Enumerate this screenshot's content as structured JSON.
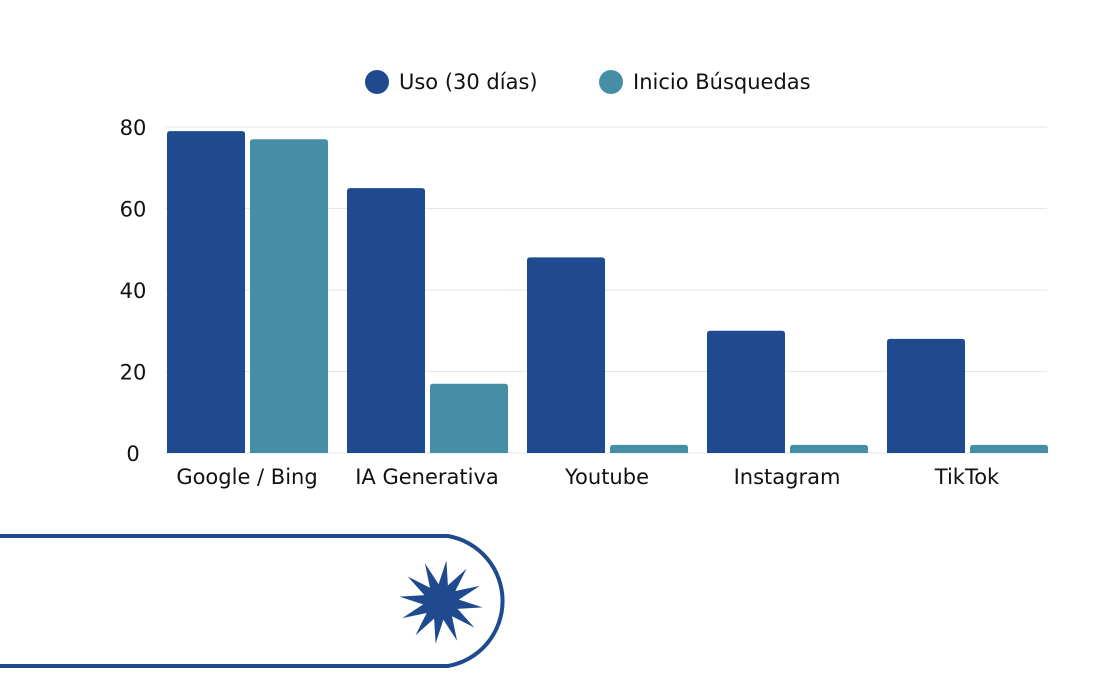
{
  "chart_data": {
    "type": "bar",
    "categories": [
      "Google / Bing",
      "IA Generativa",
      "Youtube",
      "Instagram",
      "TikTok"
    ],
    "series": [
      {
        "name": "Uso (30 días)",
        "values": [
          79,
          65,
          48,
          30,
          28
        ],
        "color": "#1f4a8f"
      },
      {
        "name": "Inicio Búsquedas",
        "values": [
          77,
          17,
          2,
          2,
          2
        ],
        "color": "#458ea6"
      }
    ],
    "yticks": [
      "0",
      "20",
      "40",
      "60",
      "80"
    ],
    "ylim": [
      0,
      80
    ],
    "grid": true,
    "legend": "top-center"
  },
  "decor": {
    "accent": "#1f4a8f",
    "icon": "star-burst-icon"
  }
}
